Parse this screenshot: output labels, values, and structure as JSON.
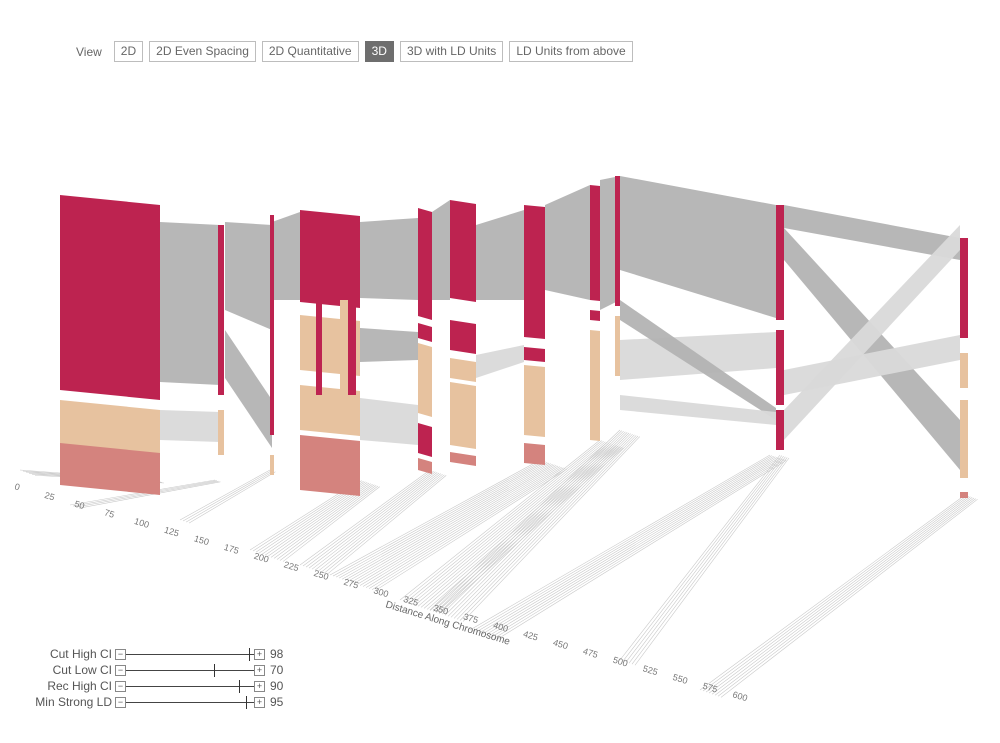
{
  "toolbar": {
    "label": "View",
    "buttons": [
      {
        "label": "2D",
        "active": false
      },
      {
        "label": "2D Even Spacing",
        "active": false
      },
      {
        "label": "2D Quantitative",
        "active": false
      },
      {
        "label": "3D",
        "active": true
      },
      {
        "label": "3D with LD Units",
        "active": false
      },
      {
        "label": "LD Units from above",
        "active": false
      }
    ]
  },
  "axis": {
    "title": "Distance Along Chromosome",
    "ticks": [
      "0",
      "25",
      "50",
      "75",
      "100",
      "125",
      "150",
      "175",
      "200",
      "225",
      "250",
      "275",
      "300",
      "325",
      "350",
      "375",
      "400",
      "425",
      "450",
      "475",
      "500",
      "525",
      "550",
      "575",
      "600"
    ]
  },
  "colors": {
    "strong": "#bd2350",
    "medium": "#e7c29f",
    "weak": "#d4837e",
    "link": "#b3b3b3",
    "link_light": "#d9d9d9",
    "button_active": "#6e6e6e"
  },
  "controls": [
    {
      "label": "Cut High CI",
      "value": "98",
      "level": 0.98
    },
    {
      "label": "Cut Low CI",
      "value": "70",
      "level": 0.7
    },
    {
      "label": "Rec High CI",
      "value": "90",
      "level": 0.9
    },
    {
      "label": "Min Strong LD",
      "value": "95",
      "level": 0.95
    }
  ]
}
